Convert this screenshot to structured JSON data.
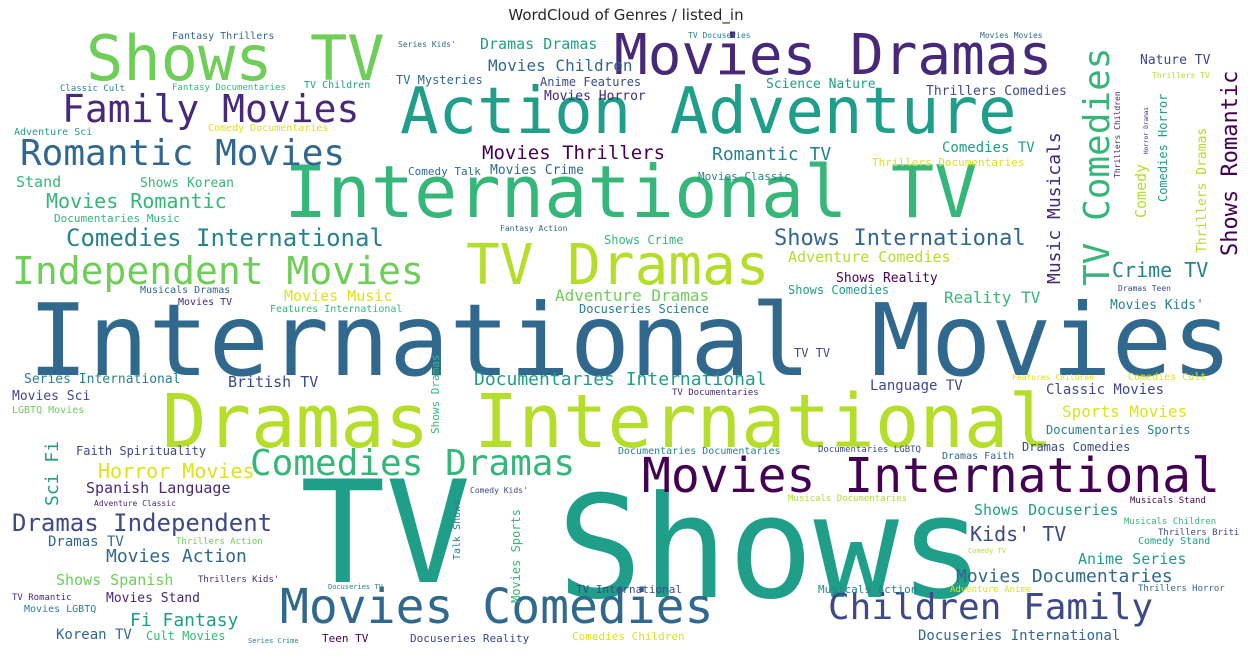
{
  "title": "WordCloud of Genres / listed_in",
  "palette": {
    "c0": "#440154",
    "c1": "#482878",
    "c2": "#3e4989",
    "c3": "#31688e",
    "c4": "#26828e",
    "c5": "#1f9e89",
    "c6": "#35b779",
    "c7": "#6ece58",
    "c8": "#b5de2b",
    "c9": "#dde318"
  },
  "chart_data": {
    "type": "wordcloud",
    "title": "WordCloud of Genres / listed_in",
    "words": [
      {
        "text": "International Movies"
      },
      {
        "text": "Shows"
      },
      {
        "text": "TV"
      },
      {
        "text": "Dramas International"
      },
      {
        "text": "International TV"
      },
      {
        "text": "Action Adventure"
      },
      {
        "text": "Movies Dramas"
      },
      {
        "text": "Shows TV"
      },
      {
        "text": "Movies International"
      },
      {
        "text": "TV Dramas"
      },
      {
        "text": "Movies Comedies"
      },
      {
        "text": "Independent Movies"
      },
      {
        "text": "Children Family"
      },
      {
        "text": "Family Movies"
      },
      {
        "text": "Romantic Movies"
      },
      {
        "text": "Comedies Dramas"
      },
      {
        "text": "TV Comedies"
      },
      {
        "text": "Comedies International"
      },
      {
        "text": "Shows International"
      },
      {
        "text": "Shows Romantic"
      },
      {
        "text": "Dramas Independent"
      },
      {
        "text": "Music Musicals"
      },
      {
        "text": "Movies Romantic"
      },
      {
        "text": "Movies Thrillers"
      },
      {
        "text": "Crime TV"
      },
      {
        "text": "Romantic TV"
      },
      {
        "text": "Movies Documentaries"
      },
      {
        "text": "Documentaries International"
      },
      {
        "text": "Horror Movies"
      },
      {
        "text": "Kids' TV"
      },
      {
        "text": "Adventure Dramas"
      },
      {
        "text": "Movies Children"
      },
      {
        "text": "Movies Action"
      },
      {
        "text": "Reality TV"
      },
      {
        "text": "Dramas Dramas"
      },
      {
        "text": "Sports Movies"
      },
      {
        "text": "Shows Docuseries"
      },
      {
        "text": "Adventure Comedies"
      },
      {
        "text": "Movies Music"
      },
      {
        "text": "Spanish Language"
      },
      {
        "text": "British TV"
      },
      {
        "text": "Anime Series"
      },
      {
        "text": "Fi Fantasy"
      },
      {
        "text": "Comedy"
      },
      {
        "text": "Thrillers Dramas"
      },
      {
        "text": "Sci Fi"
      },
      {
        "text": "Comedies TV"
      },
      {
        "text": "Nature TV"
      },
      {
        "text": "Thrillers Comedies"
      },
      {
        "text": "Science Nature"
      },
      {
        "text": "Classic Movies"
      },
      {
        "text": "Language TV"
      },
      {
        "text": "Docuseries International"
      },
      {
        "text": "Korean TV"
      },
      {
        "text": "Shows Spanish"
      },
      {
        "text": "Dramas TV"
      },
      {
        "text": "Movies Stand"
      },
      {
        "text": "Movies Crime"
      },
      {
        "text": "Shows Korean"
      },
      {
        "text": "Stand"
      },
      {
        "text": "Movies Kids'"
      },
      {
        "text": "Shows Reality"
      },
      {
        "text": "Shows Crime"
      },
      {
        "text": "Documentaries Sports"
      },
      {
        "text": "Dramas Comedies"
      },
      {
        "text": "Movies Sci"
      },
      {
        "text": "Series International"
      },
      {
        "text": "Movies Horror"
      },
      {
        "text": "Anime Features"
      },
      {
        "text": "Comedies Horror"
      },
      {
        "text": "TV Mysteries"
      },
      {
        "text": "Shows Comedies"
      },
      {
        "text": "Docuseries Science"
      },
      {
        "text": "Faith Spirituality"
      },
      {
        "text": "Movies Sports"
      },
      {
        "text": "Shows Dramas"
      },
      {
        "text": "Cult Movies"
      },
      {
        "text": "Teen TV"
      },
      {
        "text": "Docuseries Reality"
      },
      {
        "text": "Comedies Children"
      },
      {
        "text": "TV TV"
      },
      {
        "text": "Musicals Action"
      },
      {
        "text": "TV International"
      },
      {
        "text": "Movies Classic"
      },
      {
        "text": "Comedy Talk"
      },
      {
        "text": "Comedy Documentaries"
      },
      {
        "text": "Thrillers Documentaries"
      },
      {
        "text": "Fantasy Thrillers"
      },
      {
        "text": "Fantasy Documentaries"
      },
      {
        "text": "TV Children"
      },
      {
        "text": "Classic Cult"
      },
      {
        "text": "Adventure Sci"
      },
      {
        "text": "Documentaries Music"
      },
      {
        "text": "Features International"
      },
      {
        "text": "Musicals Dramas"
      },
      {
        "text": "Movies TV"
      },
      {
        "text": "Movies LGBTQ"
      },
      {
        "text": "LGBTQ Movies"
      },
      {
        "text": "TV Romantic"
      },
      {
        "text": "Thrillers Kids'"
      },
      {
        "text": "Thrillers Action"
      },
      {
        "text": "Adventure Classic"
      },
      {
        "text": "Comedy Kids'"
      },
      {
        "text": "Talk Shows"
      },
      {
        "text": "Documentaries Documentaries"
      },
      {
        "text": "Documentaries LGBTQ"
      },
      {
        "text": "Dramas Faith"
      },
      {
        "text": "Musicals Documentaries"
      },
      {
        "text": "Musicals Stand"
      },
      {
        "text": "Musicals Children"
      },
      {
        "text": "Comedy Stand"
      },
      {
        "text": "Thrillers British"
      },
      {
        "text": "Thrillers Horror"
      },
      {
        "text": "Adventure Anime"
      },
      {
        "text": "Comedies Cult"
      },
      {
        "text": "Features Children"
      },
      {
        "text": "Dramas Teen"
      },
      {
        "text": "TV Documentaries"
      },
      {
        "text": "TV Docuseries"
      },
      {
        "text": "Series Kids'"
      },
      {
        "text": "Movies Movies"
      },
      {
        "text": "Thrillers TV"
      },
      {
        "text": "Thrillers Children"
      },
      {
        "text": "Horror Dramas"
      },
      {
        "text": "Fantasy Action"
      },
      {
        "text": "Docuseries TV"
      },
      {
        "text": "Series Crime"
      },
      {
        "text": "Comedy TV"
      }
    ]
  }
}
